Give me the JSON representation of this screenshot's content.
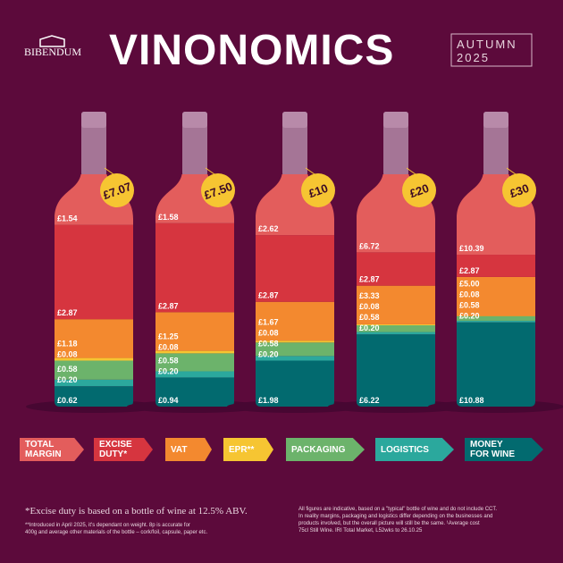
{
  "header": {
    "brand": "BIBENDUM",
    "title": "VINONOMICS",
    "edition": [
      "AUTUMN",
      "2025"
    ]
  },
  "chart_data": {
    "type": "stacked-bar",
    "categories": [
      "£7.07",
      "£7.50",
      "£10",
      "£20",
      "£30"
    ],
    "series": [
      {
        "name": "TOTAL MARGIN",
        "color": "#e35d5c",
        "values": [
          1.54,
          1.58,
          2.62,
          6.72,
          10.39
        ],
        "value_labels": [
          "£1.54",
          "£1.58",
          "£2.62",
          "£6.72",
          "£10.39"
        ]
      },
      {
        "name": "EXCISE DUTY*",
        "color": "#d6353f",
        "values": [
          2.87,
          2.87,
          2.87,
          2.87,
          2.87
        ],
        "value_labels": [
          "£2.87",
          "£2.87",
          "£2.87",
          "£2.87",
          "£2.87"
        ]
      },
      {
        "name": "VAT",
        "color": "#f3892f",
        "values": [
          1.18,
          1.25,
          1.67,
          3.33,
          5.0
        ],
        "value_labels": [
          "£1.18",
          "£1.25",
          "£1.67",
          "£3.33",
          "£5.00"
        ]
      },
      {
        "name": "EPR**",
        "color": "#f6c532",
        "values": [
          0.08,
          0.08,
          0.08,
          0.08,
          0.08
        ],
        "value_labels": [
          "£0.08",
          "£0.08",
          "£0.08",
          "£0.08",
          "£0.08"
        ]
      },
      {
        "name": "PACKAGING",
        "color": "#6cb36b",
        "values": [
          0.58,
          0.58,
          0.58,
          0.58,
          0.58
        ],
        "value_labels": [
          "£0.58",
          "£0.58",
          "£0.58",
          "£0.58",
          "£0.58"
        ]
      },
      {
        "name": "LOGISTICS",
        "color": "#2ba89d",
        "values": [
          0.2,
          0.2,
          0.2,
          0.2,
          0.2
        ],
        "value_labels": [
          "£0.20",
          "£0.20",
          "£0.20",
          "£0.20",
          "£0.20"
        ]
      },
      {
        "name": "MONEY FOR WINE",
        "color": "#026a6f",
        "values": [
          0.62,
          0.94,
          1.98,
          6.22,
          10.88
        ],
        "value_labels": [
          "£0.62",
          "£0.94",
          "£1.98",
          "£6.22",
          "£10.88"
        ]
      }
    ]
  },
  "footnotes": {
    "excise": "*Excise duty is based on a bottle of wine at 12.5% ABV.",
    "epr": [
      "**Introduced in April 2025, it's dependant on weight. 8p is accurate for",
      "400g and average other materials of the bottle – cork/foil, capsule, paper etc."
    ],
    "disclaimer": [
      "All figures are indicative, based on a \"typical\" bottle of wine and do not include CCT.",
      "In reality margins, packaging and logistics differ depending on the businesses and",
      "products involved, but the overall picture will still be the same. ¹Average cost",
      "75cl Still Wine. IRI Total Market, L52wks to 26.10.25"
    ]
  }
}
